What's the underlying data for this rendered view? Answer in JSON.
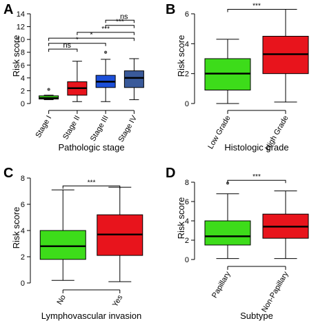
{
  "chart_data": [
    {
      "panel": "A",
      "type": "box",
      "xlabel": "Pathologic stage",
      "ylabel": "Risk score",
      "ylim": [
        0,
        14
      ],
      "yticks": [
        0,
        2,
        4,
        6,
        8,
        10,
        12,
        14
      ],
      "categories": [
        "Stage I",
        "Stage II",
        "Stage III",
        "Stage IV"
      ],
      "boxes": [
        {
          "min": 0.6,
          "q1": 0.7,
          "median": 0.85,
          "q3": 1.2,
          "max": 1.3,
          "outliers": [
            2.2
          ]
        },
        {
          "min": 0.3,
          "q1": 1.3,
          "median": 2.4,
          "q3": 3.4,
          "max": 6.6,
          "outliers": []
        },
        {
          "min": 0.3,
          "q1": 2.5,
          "median": 3.4,
          "q3": 4.4,
          "max": 6.9,
          "outliers": [
            8.0
          ]
        },
        {
          "min": 0.6,
          "q1": 2.5,
          "median": 4.0,
          "q3": 5.1,
          "max": 7.0,
          "outliers": []
        }
      ],
      "colors": [
        "#3ddc1a",
        "#e8141c",
        "#1c4fd8",
        "#3a5a9a"
      ],
      "comparisons": [
        {
          "from": 0,
          "to": 1,
          "y": 8.5,
          "label": "ns"
        },
        {
          "from": 0,
          "to": 2,
          "y": 9.4,
          "label": "*"
        },
        {
          "from": 0,
          "to": 3,
          "y": 10.2,
          "label": "*"
        },
        {
          "from": 1,
          "to": 3,
          "y": 11.1,
          "label": "***"
        },
        {
          "from": 2,
          "to": 3,
          "y": 12.2,
          "label": "***"
        },
        {
          "from": 2,
          "to": 3,
          "y": 13.0,
          "label": "ns"
        }
      ],
      "rotated_xticks": true
    },
    {
      "panel": "B",
      "type": "box",
      "xlabel": "Histologic grade",
      "ylabel": "Risk score",
      "ylim": [
        0,
        6
      ],
      "yticks": [
        0,
        2,
        4,
        6
      ],
      "categories": [
        "Low Grade",
        "High Grade"
      ],
      "boxes": [
        {
          "min": 0.0,
          "q1": 0.9,
          "median": 2.0,
          "q3": 3.0,
          "max": 4.3,
          "outliers": []
        },
        {
          "min": 0.1,
          "q1": 2.0,
          "median": 3.3,
          "q3": 4.5,
          "max": 6.3,
          "outliers": []
        }
      ],
      "colors": [
        "#3ddc1a",
        "#e8141c"
      ],
      "comparisons": [
        {
          "from": 0,
          "to": 1,
          "y": 6.3,
          "label": "***"
        }
      ],
      "rotated_xticks": true
    },
    {
      "panel": "C",
      "type": "box",
      "xlabel": "Lymphovascular invasion",
      "ylabel": "Risk score",
      "ylim": [
        0,
        8
      ],
      "yticks": [
        0,
        2,
        4,
        6,
        8
      ],
      "categories": [
        "No",
        "Yes"
      ],
      "boxes": [
        {
          "min": 0.2,
          "q1": 1.8,
          "median": 2.8,
          "q3": 4.0,
          "max": 7.1,
          "outliers": []
        },
        {
          "min": 0.1,
          "q1": 2.1,
          "median": 3.7,
          "q3": 5.2,
          "max": 7.3,
          "outliers": []
        }
      ],
      "colors": [
        "#3ddc1a",
        "#e8141c"
      ],
      "comparisons": [
        {
          "from": 0,
          "to": 1,
          "y": 7.4,
          "label": "***"
        }
      ],
      "rotated_xticks": true
    },
    {
      "panel": "D",
      "type": "box",
      "xlabel": "Subtype",
      "ylabel": "Risk score",
      "ylim": [
        0,
        8
      ],
      "yticks": [
        0,
        2,
        4,
        6,
        8
      ],
      "categories": [
        "Papillary",
        "Non-Papillary"
      ],
      "boxes": [
        {
          "min": 0.1,
          "q1": 1.5,
          "median": 2.4,
          "q3": 4.0,
          "max": 6.8,
          "outliers": [
            7.9
          ]
        },
        {
          "min": 0.1,
          "q1": 2.2,
          "median": 3.4,
          "q3": 4.7,
          "max": 7.1,
          "outliers": []
        }
      ],
      "colors": [
        "#3ddc1a",
        "#e8141c"
      ],
      "comparisons": [
        {
          "from": 0,
          "to": 1,
          "y": 8.2,
          "label": "***"
        }
      ],
      "rotated_xticks": true
    }
  ]
}
